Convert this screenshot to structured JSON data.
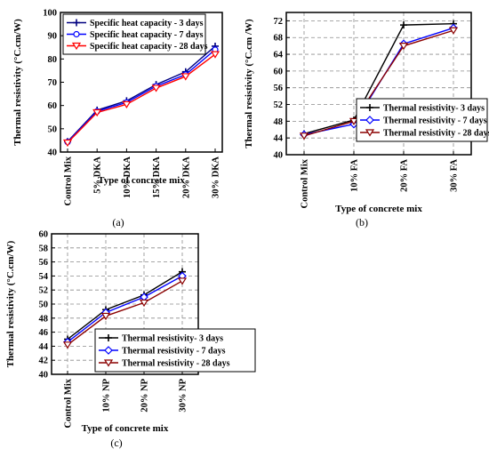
{
  "chart_data": [
    {
      "panel": "(a)",
      "type": "line",
      "title": "",
      "xlabel": "Type of concrete mix",
      "ylabel": "Thermal resistivity (°C.cm/W)",
      "categories": [
        "Control Mix",
        "5% DKA",
        "10% DKA",
        "15% DKA",
        "20% DKA",
        "30% DKA"
      ],
      "ylim": [
        40,
        100
      ],
      "yticks": [
        "40",
        "50",
        "60",
        "70",
        "80",
        "90",
        "100"
      ],
      "grid": false,
      "legend_position": "top-left",
      "series": [
        {
          "name": "Specific heat capacity - 3 days",
          "color": "#000080",
          "marker": "plus",
          "values": [
            44.5,
            58.0,
            62.0,
            69.0,
            74.5,
            85.5
          ]
        },
        {
          "name": "Specific heat capacity - 7 days",
          "color": "#0000ff",
          "marker": "circle",
          "values": [
            44.3,
            57.5,
            61.3,
            68.3,
            73.3,
            84.0
          ]
        },
        {
          "name": "Specific heat capacity - 28 days",
          "color": "#ff0000",
          "marker": "triangle-down",
          "values": [
            44.0,
            57.0,
            60.5,
            67.5,
            72.5,
            82.0
          ]
        }
      ]
    },
    {
      "panel": "(b)",
      "type": "line",
      "title": "",
      "xlabel": "Type of concrete mix",
      "ylabel": "Thermal resistivity (°C.cm /W)",
      "categories": [
        "Control Mix",
        "10% FA",
        "20% FA",
        "30% FA"
      ],
      "ylim": [
        40,
        74
      ],
      "yticks": [
        "40",
        "44",
        "48",
        "52",
        "56",
        "60",
        "64",
        "68",
        "72"
      ],
      "grid": true,
      "legend_position": "right",
      "series": [
        {
          "name": "Thermal resistivity- 3 days",
          "color": "#000000",
          "marker": "plus",
          "values": [
            45.0,
            48.3,
            71.0,
            71.3
          ]
        },
        {
          "name": "Thermal resistivity - 7 days",
          "color": "#0000ff",
          "marker": "diamond",
          "values": [
            44.8,
            47.3,
            66.5,
            70.3
          ]
        },
        {
          "name": "Thermal resistivity - 28 days",
          "color": "#8b0000",
          "marker": "triangle-down",
          "values": [
            44.5,
            48.0,
            66.0,
            69.7
          ]
        }
      ]
    },
    {
      "panel": "(c)",
      "type": "line",
      "title": "",
      "xlabel": "Type of concrete mix",
      "ylabel": "Thermal resistivity (°C.cm/W)",
      "categories": [
        "Control Mix",
        "10% NP",
        "20% NP",
        "30% NP"
      ],
      "ylim": [
        40,
        60
      ],
      "yticks": [
        "40",
        "42",
        "44",
        "46",
        "48",
        "50",
        "52",
        "54",
        "56",
        "58",
        "60"
      ],
      "grid": true,
      "legend_position": "bottom-right",
      "series": [
        {
          "name": "Thermal resistivity- 3 days",
          "color": "#000000",
          "marker": "plus",
          "values": [
            45.0,
            49.2,
            51.3,
            54.6
          ]
        },
        {
          "name": "Thermal resistivity - 7 days",
          "color": "#0000ff",
          "marker": "diamond",
          "values": [
            44.6,
            48.8,
            51.0,
            54.0
          ]
        },
        {
          "name": "Thermal resistivity - 28 days",
          "color": "#8b0000",
          "marker": "triangle-down",
          "values": [
            44.2,
            48.3,
            50.2,
            53.3
          ]
        }
      ]
    }
  ]
}
